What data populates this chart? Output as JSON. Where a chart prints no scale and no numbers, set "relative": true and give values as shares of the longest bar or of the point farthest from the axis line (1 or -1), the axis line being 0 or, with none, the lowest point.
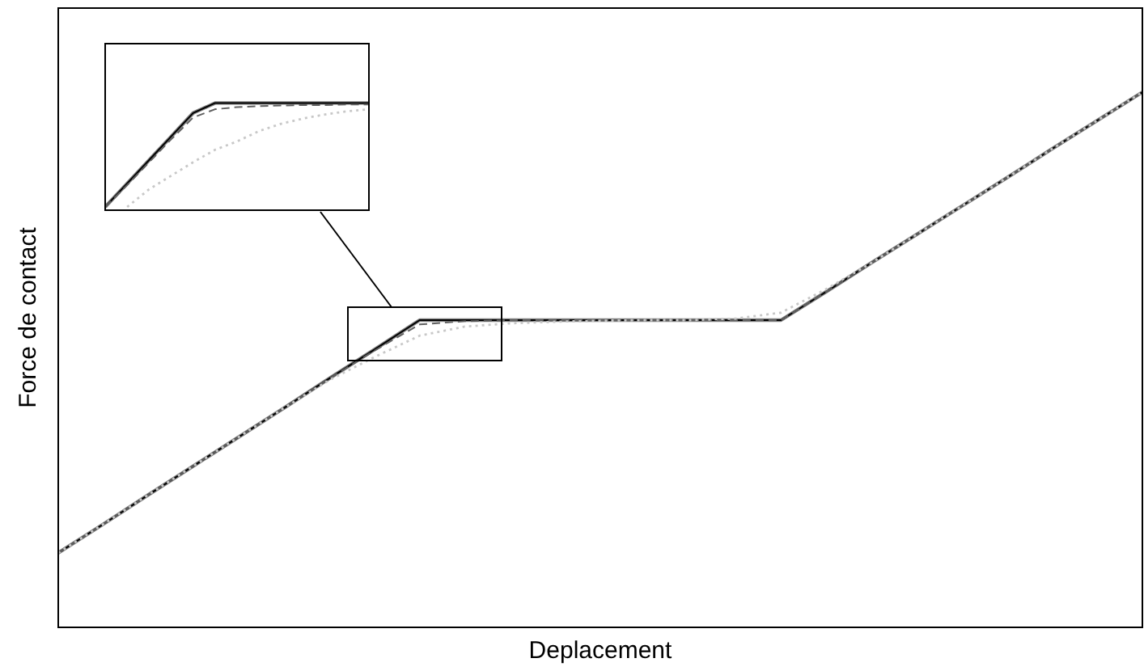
{
  "chart_data": [
    {
      "type": "line",
      "xlabel": "Deplacement",
      "ylabel": "Force de contact",
      "relative": true,
      "categories": [
        null,
        null,
        null,
        null,
        null,
        null,
        null,
        null,
        null,
        null,
        null,
        null,
        null,
        null,
        null,
        null,
        null,
        null,
        null,
        null,
        null,
        null,
        null,
        null,
        null
      ],
      "series": [
        {
          "color": "#808080",
          "line_style": "solid",
          "values": [
            0.139,
            0.193,
            0.248,
            0.302,
            0.356,
            0.41,
            0.465,
            0.519,
            0.574,
            0.574,
            0.574,
            0.574,
            0.574,
            0.574,
            0.574,
            0.574,
            0.574,
            0.627,
            0.681,
            0.734,
            0.787,
            0.84,
            0.894,
            0.947,
            1
          ]
        },
        {
          "color": "#000000",
          "line_style": "solid",
          "values": [
            0.139,
            0.193,
            0.248,
            0.302,
            0.356,
            0.41,
            0.465,
            0.519,
            0.574,
            0.574,
            0.574,
            0.574,
            0.574,
            0.574,
            0.574,
            0.574,
            0.574,
            0.627,
            0.681,
            0.734,
            0.787,
            0.84,
            0.894,
            0.947,
            1
          ]
        },
        {
          "color": "#606060",
          "line_style": "dashed",
          "values": [
            0.139,
            0.193,
            0.248,
            0.302,
            0.356,
            0.41,
            0.465,
            0.517,
            0.566,
            0.572,
            0.574,
            0.574,
            0.574,
            0.574,
            0.574,
            0.574,
            0.574,
            0.627,
            0.681,
            0.734,
            0.787,
            0.84,
            0.894,
            0.947,
            1
          ]
        },
        {
          "color": "#c8c8c8",
          "line_style": "dotted",
          "values": [
            0.139,
            0.193,
            0.248,
            0.302,
            0.356,
            0.41,
            0.462,
            0.505,
            0.545,
            0.562,
            0.568,
            0.571,
            0.573,
            0.574,
            0.574,
            0.577,
            0.588,
            0.632,
            0.681,
            0.734,
            0.787,
            0.84,
            0.894,
            0.947,
            1
          ]
        }
      ]
    },
    {
      "type": "line",
      "relative": true,
      "categories": [
        null,
        null,
        null,
        null,
        null,
        null,
        null,
        null,
        null,
        null,
        null,
        null,
        null
      ],
      "series": [
        {
          "color": "#808080",
          "line_style": "solid",
          "values": [
            0,
            0.226,
            0.451,
            0.677,
            0.903,
            1,
            1,
            1,
            1,
            1,
            1,
            1,
            1
          ]
        },
        {
          "color": "#000000",
          "line_style": "solid",
          "values": [
            0,
            0.226,
            0.451,
            0.677,
            0.903,
            1,
            1,
            1,
            1,
            1,
            1,
            1,
            1
          ]
        },
        {
          "color": "#606060",
          "line_style": "dashed",
          "values": [
            0,
            0.21,
            0.43,
            0.65,
            0.86,
            0.94,
            0.96,
            0.97,
            0.975,
            0.98,
            0.98,
            0.985,
            0.985
          ]
        },
        {
          "color": "#c8c8c8",
          "line_style": "dotted",
          "values": [
            null,
            0,
            0.17,
            0.3,
            0.43,
            0.55,
            0.63,
            0.73,
            0.8,
            0.85,
            0.89,
            0.92,
            0.94
          ]
        }
      ]
    }
  ]
}
